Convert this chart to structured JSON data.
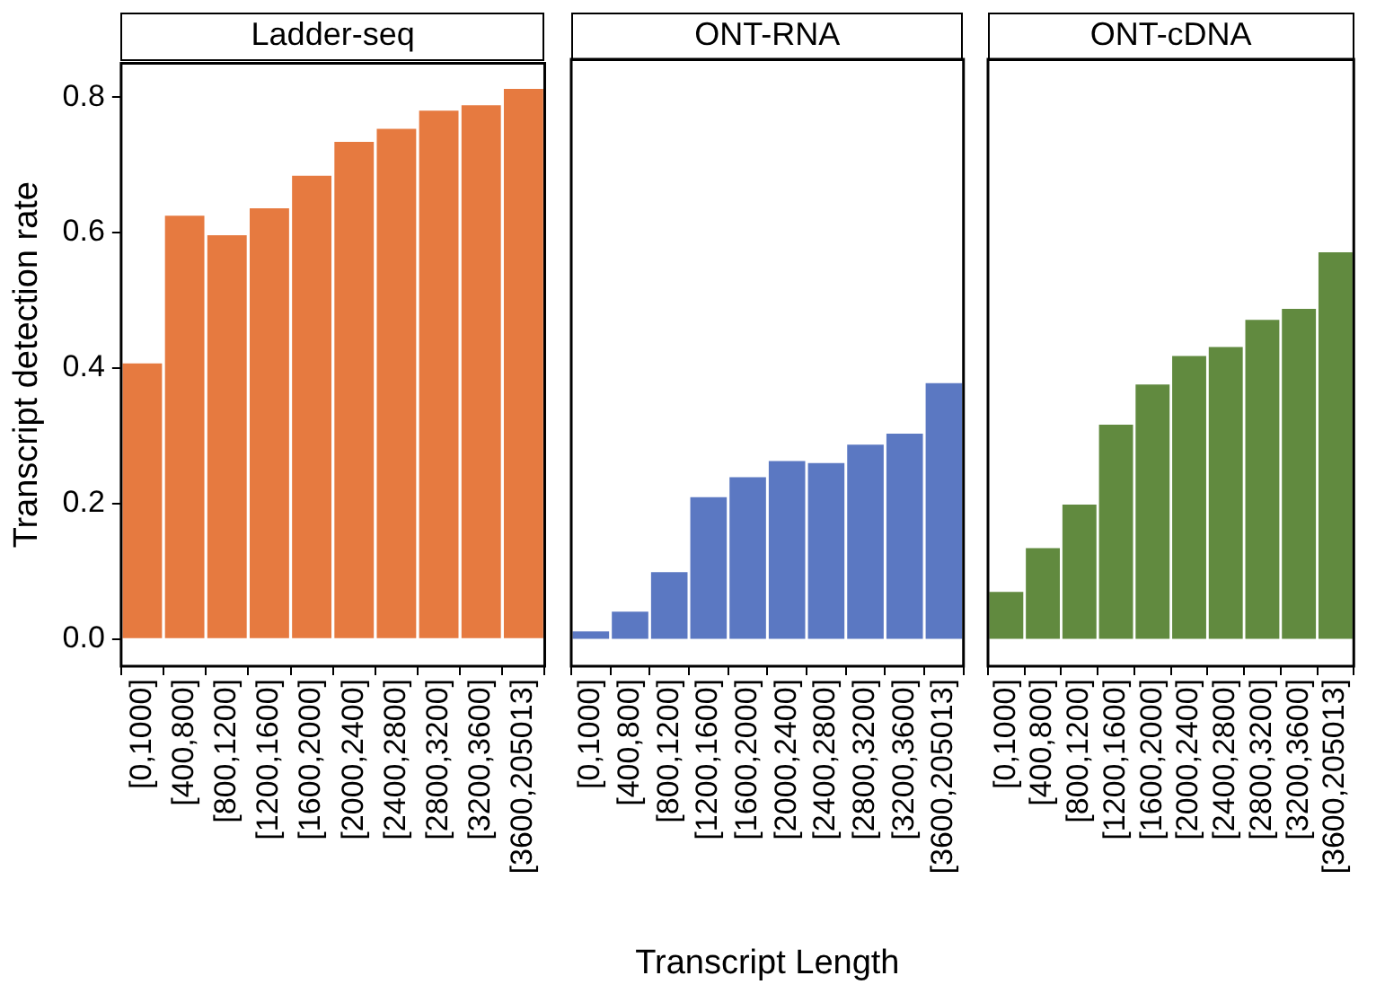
{
  "chart_data": [
    {
      "type": "bar",
      "title": "Ladder-seq",
      "ylabel": "Transcript detection rate",
      "categories": [
        "[0,1000]",
        "[400,800]",
        "[800,1200]",
        "[1200,1600]",
        "[1600,2000]",
        "[2000,2400]",
        "[2400,2800]",
        "[2800,3200]",
        "[3200,3600]",
        "[3600,205013]"
      ],
      "color": "#e67a40",
      "values": [
        0.407,
        0.625,
        0.596,
        0.636,
        0.684,
        0.734,
        0.753,
        0.78,
        0.788,
        0.812
      ],
      "ylim": [
        -0.04,
        0.85
      ],
      "yticks": [
        {
          "value": 0,
          "label": "0.0"
        },
        0.2,
        0.4,
        0.6,
        0.8
      ],
      "grid": false,
      "legend": false
    },
    {
      "type": "bar",
      "title": "ONT-RNA",
      "xlabel": "Transcript Length",
      "categories": [
        "[0,1000]",
        "[400,800]",
        "[800,1200]",
        "[1200,1600]",
        "[1600,2000]",
        "[2000,2400]",
        "[2400,2800]",
        "[2800,3200]",
        "[3200,3600]",
        "[3600,205013]"
      ],
      "color": "#5b78c2",
      "values": [
        0.011,
        0.04,
        0.098,
        0.208,
        0.237,
        0.261,
        0.258,
        0.285,
        0.301,
        0.375
      ],
      "ylim": [
        -0.04,
        0.85
      ],
      "tick_labels": "x",
      "grid": false,
      "legend": false
    },
    {
      "type": "bar",
      "title": "ONT-cDNA",
      "categories": [
        "[0,1000]",
        "[400,800]",
        "[800,1200]",
        "[1200,1600]",
        "[1600,2000]",
        "[2000,2400]",
        "[2400,2800]",
        "[2800,3200]",
        "[3200,3600]",
        "[3600,205013]"
      ],
      "color": "#618a3f",
      "values": [
        0.069,
        0.133,
        0.197,
        0.314,
        0.373,
        0.415,
        0.428,
        0.468,
        0.484,
        0.567
      ],
      "ylim": [
        -0.04,
        0.85
      ],
      "tick_labels": "x",
      "grid": false,
      "legend": false
    }
  ]
}
